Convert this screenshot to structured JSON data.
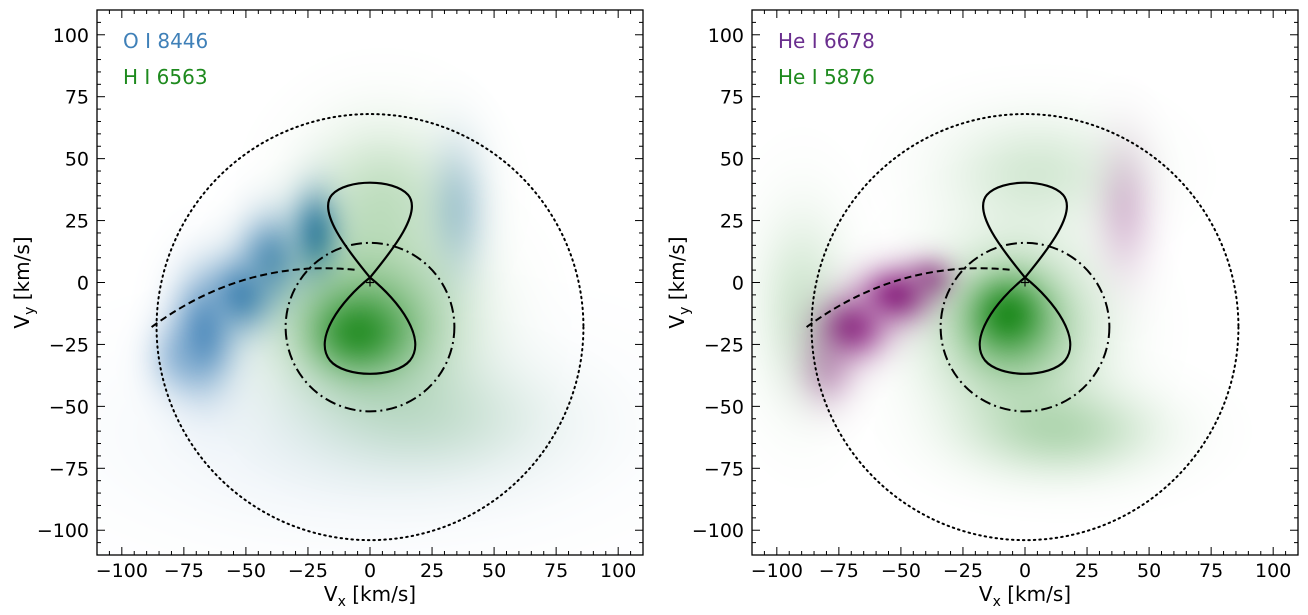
{
  "figure": "two doppler-tomogram panels",
  "colors": {
    "blue": "#3f80b8",
    "green": "#1e8a1e",
    "purple": "#6a2e8e",
    "magenta": "#8e1f83",
    "frame": "#000000"
  },
  "chart_data": [
    {
      "type": "heatmap",
      "xlabel_base": "V",
      "xlabel_sub": "x",
      "xlabel_unit": " [km/s]",
      "ylabel_base": "V",
      "ylabel_sub": "y",
      "ylabel_unit": " [km/s]",
      "xlim": [
        -110,
        110
      ],
      "ylim": [
        -110,
        110
      ],
      "xticks": [
        -100,
        -75,
        -50,
        -25,
        0,
        25,
        50,
        75,
        100
      ],
      "yticks": [
        -100,
        -75,
        -50,
        -25,
        0,
        25,
        50,
        75,
        100
      ],
      "xtick_labels": [
        "−100",
        "−75",
        "−50",
        "−25",
        "0",
        "25",
        "50",
        "75",
        "100"
      ],
      "ytick_labels": [
        "−100",
        "−75",
        "−50",
        "−25",
        "0",
        "25",
        "50",
        "75",
        "100"
      ],
      "legend": [
        {
          "label": "O I 8446",
          "color": "#3f80b8"
        },
        {
          "label": "H I 6563",
          "color": "#1e8a1e"
        }
      ],
      "overlays": {
        "roche_lobe": {
          "center": [
            0,
            2
          ],
          "top": 40,
          "bottom": -36,
          "half_width": 17
        },
        "disk_outer_circle": {
          "center": [
            0,
            -18
          ],
          "radius": 86
        },
        "disk_inner_circle": {
          "center": [
            0,
            -18
          ],
          "radius": 34
        },
        "stream": {
          "start": [
            -88,
            -18
          ],
          "ctrl": [
            -50,
            10
          ],
          "end": [
            -5,
            5
          ]
        },
        "center_mark": [
          0,
          0
        ]
      },
      "emission": [
        {
          "series": "O I 8446",
          "x": -67,
          "y": -20,
          "sx": 9,
          "sy": 16,
          "w": 0.8
        },
        {
          "series": "O I 8446",
          "x": -52,
          "y": -5,
          "sx": 9,
          "sy": 10,
          "w": 0.85
        },
        {
          "series": "O I 8446",
          "x": -40,
          "y": 10,
          "sx": 9,
          "sy": 12,
          "w": 0.75
        },
        {
          "series": "O I 8446",
          "x": -22,
          "y": 20,
          "sx": 7,
          "sy": 12,
          "w": 0.9
        },
        {
          "series": "O I 8446",
          "x": -78,
          "y": -30,
          "sx": 8,
          "sy": 10,
          "w": 0.35
        },
        {
          "series": "O I 8446",
          "x": 35,
          "y": 30,
          "sx": 8,
          "sy": 18,
          "w": 0.35
        },
        {
          "series": "O I 8446",
          "x": 0,
          "y": -60,
          "sx": 60,
          "sy": 25,
          "w": 0.12
        },
        {
          "series": "H I 6563",
          "x": -5,
          "y": -20,
          "sx": 12,
          "sy": 10,
          "w": 0.85
        },
        {
          "series": "H I 6563",
          "x": 0,
          "y": -15,
          "sx": 25,
          "sy": 22,
          "w": 0.55
        },
        {
          "series": "H I 6563",
          "x": 5,
          "y": 35,
          "sx": 20,
          "sy": 20,
          "w": 0.25
        },
        {
          "series": "H I 6563",
          "x": 25,
          "y": -55,
          "sx": 30,
          "sy": 15,
          "w": 0.15
        }
      ]
    },
    {
      "type": "heatmap",
      "xlabel_base": "V",
      "xlabel_sub": "x",
      "xlabel_unit": " [km/s]",
      "ylabel_base": "V",
      "ylabel_sub": "y",
      "ylabel_unit": " [km/s]",
      "xlim": [
        -110,
        110
      ],
      "ylim": [
        -110,
        110
      ],
      "xticks": [
        -100,
        -75,
        -50,
        -25,
        0,
        25,
        50,
        75,
        100
      ],
      "yticks": [
        -100,
        -75,
        -50,
        -25,
        0,
        25,
        50,
        75,
        100
      ],
      "xtick_labels": [
        "−100",
        "−75",
        "−50",
        "−25",
        "0",
        "25",
        "50",
        "75",
        "100"
      ],
      "ytick_labels": [
        "−100",
        "−75",
        "−50",
        "−25",
        "0",
        "25",
        "50",
        "75",
        "100"
      ],
      "legend": [
        {
          "label": "He I 6678",
          "color": "#6a2e8e"
        },
        {
          "label": "He I 5876",
          "color": "#1e8a1e"
        }
      ],
      "overlays": {
        "roche_lobe": {
          "center": [
            0,
            2
          ],
          "top": 40,
          "bottom": -36,
          "half_width": 17
        },
        "disk_outer_circle": {
          "center": [
            0,
            -18
          ],
          "radius": 86
        },
        "disk_inner_circle": {
          "center": [
            0,
            -18
          ],
          "radius": 34
        },
        "stream": {
          "start": [
            -88,
            -18
          ],
          "ctrl": [
            -50,
            10
          ],
          "end": [
            -5,
            5
          ]
        },
        "center_mark": [
          0,
          0
        ]
      },
      "emission": [
        {
          "series": "He I 6678",
          "x": -70,
          "y": -18,
          "sx": 10,
          "sy": 9,
          "w": 0.85
        },
        {
          "series": "He I 6678",
          "x": -52,
          "y": -5,
          "sx": 10,
          "sy": 8,
          "w": 0.9
        },
        {
          "series": "He I 6678",
          "x": -38,
          "y": 2,
          "sx": 7,
          "sy": 6,
          "w": 0.55
        },
        {
          "series": "He I 6678",
          "x": -80,
          "y": -35,
          "sx": 8,
          "sy": 10,
          "w": 0.35
        },
        {
          "series": "He I 6678",
          "x": 40,
          "y": 30,
          "sx": 8,
          "sy": 18,
          "w": 0.25
        },
        {
          "series": "He I 5876",
          "x": -7,
          "y": -13,
          "sx": 10,
          "sy": 10,
          "w": 0.95
        },
        {
          "series": "He I 5876",
          "x": -5,
          "y": -18,
          "sx": 22,
          "sy": 22,
          "w": 0.5
        },
        {
          "series": "He I 5876",
          "x": 15,
          "y": -60,
          "sx": 25,
          "sy": 12,
          "w": 0.3
        },
        {
          "series": "He I 5876",
          "x": -90,
          "y": -10,
          "sx": 12,
          "sy": 25,
          "w": 0.2
        },
        {
          "series": "He I 5876",
          "x": 5,
          "y": 45,
          "sx": 25,
          "sy": 15,
          "w": 0.18
        }
      ]
    }
  ]
}
